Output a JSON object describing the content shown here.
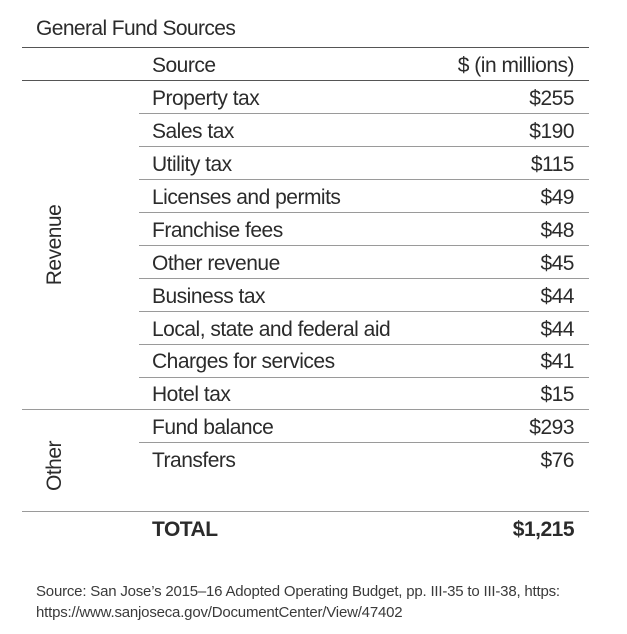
{
  "title": "General Fund Sources",
  "header": {
    "source": "Source",
    "amount": "$ (in millions)"
  },
  "groups": {
    "revenue": "Revenue",
    "other": "Other"
  },
  "rows": [
    {
      "source": "Property tax",
      "amount": "$255"
    },
    {
      "source": "Sales tax",
      "amount": "$190"
    },
    {
      "source": "Utility tax",
      "amount": "$115"
    },
    {
      "source": "Licenses and permits",
      "amount": "$49"
    },
    {
      "source": "Franchise fees",
      "amount": "$48"
    },
    {
      "source": "Other revenue",
      "amount": "$45"
    },
    {
      "source": "Business tax",
      "amount": "$44"
    },
    {
      "source": "Local, state and federal aid",
      "amount": "$44"
    },
    {
      "source": "Charges for services",
      "amount": "$41"
    },
    {
      "source": "Hotel tax",
      "amount": "$15"
    },
    {
      "source": "Fund balance",
      "amount": "$293"
    },
    {
      "source": "Transfers",
      "amount": "$76"
    }
  ],
  "total": {
    "label": "TOTAL",
    "amount": "$1,215"
  },
  "footnote": {
    "line1": "Source: San Jose’s 2015–16 Adopted Operating Budget, pp. III-35 to III-38, https:",
    "line2": "https://www.sanjoseca.gov/DocumentCenter/View/47402"
  }
}
